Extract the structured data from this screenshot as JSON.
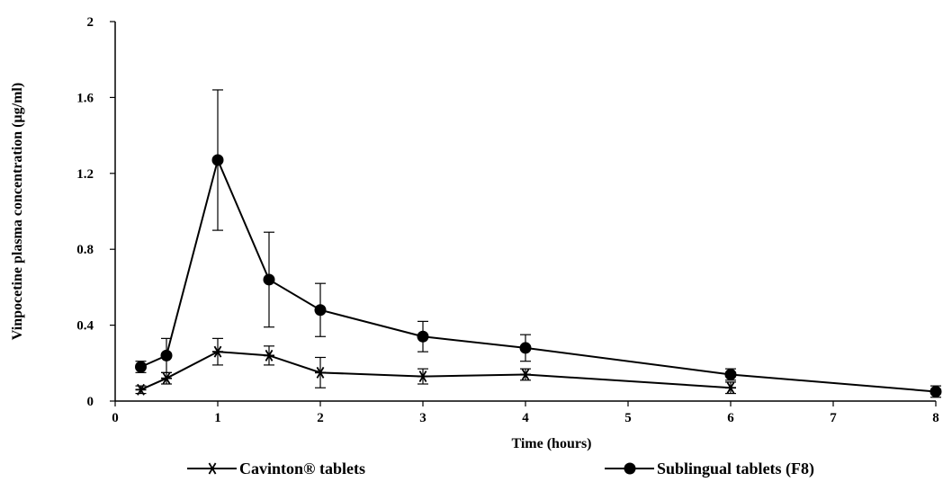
{
  "chart_data": {
    "type": "line",
    "xlabel": "Time (hours)",
    "ylabel": "Vinpocetine plasma concentration (µg/ml)",
    "xlim": [
      0,
      8
    ],
    "ylim": [
      0,
      2
    ],
    "xticks": [
      "0",
      "1",
      "2",
      "3",
      "4",
      "5",
      "6",
      "7",
      "8"
    ],
    "yticks": [
      "0",
      "0.4",
      "0.8",
      "1.2",
      "1.6",
      "2"
    ],
    "grid": false,
    "legend_position": "bottom",
    "series": [
      {
        "name": "Cavinton®  tablets",
        "marker": "star",
        "color": "#000000",
        "x": [
          0.25,
          0.5,
          1,
          1.5,
          2,
          3,
          4,
          6
        ],
        "y": [
          0.06,
          0.12,
          0.26,
          0.24,
          0.15,
          0.13,
          0.14,
          0.07
        ],
        "error": [
          0.02,
          0.03,
          0.07,
          0.05,
          0.08,
          0.04,
          0.03,
          0.03
        ]
      },
      {
        "name": "Sublingual tablets (F8)",
        "marker": "circle",
        "color": "#000000",
        "x": [
          0.25,
          0.5,
          1,
          1.5,
          2,
          3,
          4,
          6,
          8
        ],
        "y": [
          0.18,
          0.24,
          1.27,
          0.64,
          0.48,
          0.34,
          0.28,
          0.14,
          0.05
        ],
        "error": [
          0.03,
          0.09,
          0.37,
          0.25,
          0.14,
          0.08,
          0.07,
          0.03,
          0.03
        ]
      }
    ]
  }
}
